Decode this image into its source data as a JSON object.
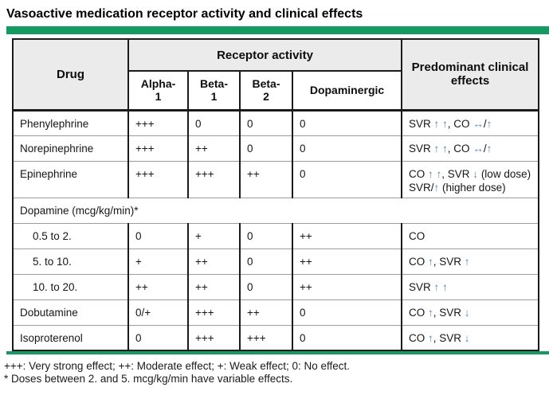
{
  "title": "Vasoactive medication receptor activity and clinical effects",
  "colors": {
    "accent_green": "#109c60",
    "arrow_blue": "#4a86c8",
    "header_bg": "#ebebeb",
    "border_dark": "#1b1b1b",
    "row_divider": "#9c9c9c"
  },
  "table": {
    "drug_header": "Drug",
    "group_header": "Receptor activity",
    "sub_columns": [
      "Alpha-\n1",
      "Beta-\n1",
      "Beta-\n2",
      "Dopaminergic"
    ],
    "effects_header": "Predominant clinical effects",
    "rows": [
      {
        "type": "drug",
        "name": "Phenylephrine",
        "alpha1": "+++",
        "beta1": "0",
        "beta2": "0",
        "dopaminergic": "0",
        "effects": "SVR ↑ ↑, CO ↔/↑"
      },
      {
        "type": "drug",
        "name": "Norepinephrine",
        "alpha1": "+++",
        "beta1": "++",
        "beta2": "0",
        "dopaminergic": "0",
        "effects": "SVR ↑ ↑, CO ↔/↑"
      },
      {
        "type": "drug",
        "name": "Epinephrine",
        "alpha1": "+++",
        "beta1": "+++",
        "beta2": "++",
        "dopaminergic": "0",
        "effects": "CO ↑ ↑, SVR ↓ (low dose) SVR/↑ (higher dose)"
      },
      {
        "type": "section",
        "name": "Dopamine (mcg/kg/min)*"
      },
      {
        "type": "dose",
        "name": "0.5 to 2.",
        "alpha1": "0",
        "beta1": "+",
        "beta2": "0",
        "dopaminergic": "++",
        "effects": "CO"
      },
      {
        "type": "dose",
        "name": "5. to 10.",
        "alpha1": "+",
        "beta1": "++",
        "beta2": "0",
        "dopaminergic": "++",
        "effects": "CO ↑, SVR ↑"
      },
      {
        "type": "dose",
        "name": "10. to 20.",
        "alpha1": "++",
        "beta1": "++",
        "beta2": "0",
        "dopaminergic": "++",
        "effects": "SVR ↑ ↑"
      },
      {
        "type": "drug",
        "name": "Dobutamine",
        "alpha1": "0/+",
        "beta1": "+++",
        "beta2": "++",
        "dopaminergic": "0",
        "effects": "CO ↑, SVR ↓"
      },
      {
        "type": "drug",
        "name": "Isoproterenol",
        "alpha1": "0",
        "beta1": "+++",
        "beta2": "+++",
        "dopaminergic": "0",
        "effects": "CO ↑, SVR ↓"
      }
    ]
  },
  "footnotes": [
    "+++: Very strong effect; ++: Moderate effect; +: Weak effect; 0: No effect.",
    "* Doses between 2. and 5. mcg/kg/min have variable effects."
  ]
}
